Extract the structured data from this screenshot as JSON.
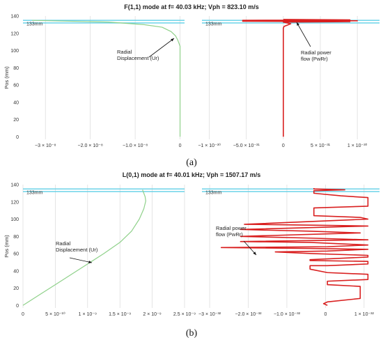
{
  "figure": {
    "caption_a": "(a)",
    "caption_b": "(b)"
  },
  "colors": {
    "displacement": "#8fd18a",
    "power": "#d91f1f",
    "bound": "#5fcfe6",
    "grid": "#d9d9d9"
  },
  "chart_data": [
    {
      "type": "line",
      "panel": "a-left",
      "title": "F(1,1) mode at f= 40.03 kHz; Vph = 823.10 m/s",
      "ylabel": "Pos (mm)",
      "xlabel": "",
      "yticks": [
        "0",
        "20",
        "40",
        "60",
        "80",
        "100",
        "120",
        "140"
      ],
      "ylim": [
        -3,
        140
      ],
      "xlim": [
        -3.5e-08,
        1e-09
      ],
      "xticks": [
        {
          "value": -3e-08,
          "label": "−3 × 10⁻⁸"
        },
        {
          "value": -2e-08,
          "label": "−2.0 × 10⁻⁸"
        },
        {
          "value": -1e-08,
          "label": "−1.0 × 10⁻⁸"
        },
        {
          "value": 0,
          "label": "0"
        }
      ],
      "grid": "vertical",
      "boundaries": [
        132,
        135
      ],
      "boundary_label": "133mm",
      "annotation": [
        "Radial",
        "Displacement (Ur)"
      ],
      "series": [
        {
          "name": "Radial Displacement (Ur)",
          "x": [
            -3.3e-08,
            -1.6e-08,
            -8e-09,
            -4e-09,
            -2e-09,
            -1e-09,
            -5e-10,
            0,
            0
          ],
          "y": [
            135,
            133,
            130,
            127,
            122,
            117,
            112,
            105,
            0
          ]
        }
      ]
    },
    {
      "type": "line",
      "panel": "a-right",
      "title": "",
      "ylim": [
        -3,
        140
      ],
      "xlim": [
        -1.1e-30,
        1.3e-30
      ],
      "xticks": [
        {
          "value": -1e-30,
          "label": "−1 × 10⁻³⁰"
        },
        {
          "value": -5e-31,
          "label": "−5.0 × 10⁻³¹"
        },
        {
          "value": 0,
          "label": "0"
        },
        {
          "value": 5e-31,
          "label": "5 × 10⁻³¹"
        },
        {
          "value": 1e-30,
          "label": "1 × 10⁻³⁰"
        }
      ],
      "grid": "vertical",
      "boundaries": [
        132,
        135
      ],
      "boundary_label": "133mm",
      "annotation": [
        "Radial power",
        "flow (PwRr)"
      ],
      "series": [
        {
          "name": "Radial power flow (PwRr)",
          "x": [
            0,
            0,
            0,
            0,
            1e-32,
            1e-31,
            0,
            9e-31,
            -5.5e-31,
            1e-30,
            -5.5e-31,
            9e-31,
            0,
            0
          ],
          "y": [
            0,
            118,
            122,
            126,
            128,
            131,
            133,
            133.5,
            134,
            134.5,
            135,
            135.5,
            136,
            136
          ]
        }
      ]
    },
    {
      "type": "line",
      "panel": "b-left",
      "title": "L(0,1) mode at f= 40.01 kHz; Vph = 1507.17 m/s",
      "ylabel": "Pos (mm)",
      "xlabel": "",
      "yticks": [
        "0",
        "20",
        "40",
        "60",
        "80",
        "100",
        "120",
        "140"
      ],
      "ylim": [
        -3,
        140
      ],
      "xlim": [
        0,
        2.5e-09
      ],
      "xticks": [
        {
          "value": 0,
          "label": "0"
        },
        {
          "value": 5e-10,
          "label": "5 × 10⁻¹⁰"
        },
        {
          "value": 1e-09,
          "label": "1 × 10⁻⁹"
        },
        {
          "value": 1.5e-09,
          "label": "1.5 × 10⁻⁹"
        },
        {
          "value": 2e-09,
          "label": "2 × 10⁻⁹"
        },
        {
          "value": 2.5e-09,
          "label": "2.5 × 10⁻⁹"
        }
      ],
      "grid": "vertical",
      "boundaries": [
        132,
        135
      ],
      "boundary_label": "133mm",
      "annotation": [
        "Radial",
        "Displacement (Ur)"
      ],
      "series": [
        {
          "name": "Radial Displacement (Ur)",
          "x": [
            0,
            2.5e-10,
            5e-10,
            7.5e-10,
            1e-09,
            1.25e-09,
            1.5e-09,
            1.68e-09,
            1.8e-09,
            1.87e-09,
            1.9e-09,
            1.89e-09,
            1.87e-09,
            1.85e-09
          ],
          "y": [
            0,
            12,
            24,
            36,
            48,
            60,
            73,
            86,
            100,
            112,
            121,
            126,
            130,
            134
          ]
        }
      ]
    },
    {
      "type": "line",
      "panel": "b-right",
      "title": "",
      "ylim": [
        -3,
        140
      ],
      "xlim": [
        -3.2e-32,
        1.4e-32
      ],
      "xticks": [
        {
          "value": -3e-32,
          "label": "−3 × 10⁻³²"
        },
        {
          "value": -2e-32,
          "label": "−2.0 × 10⁻³²"
        },
        {
          "value": -1e-32,
          "label": "−1.0 × 10⁻³²"
        },
        {
          "value": 0,
          "label": "0"
        },
        {
          "value": 1e-32,
          "label": "1 × 10⁻³²"
        }
      ],
      "grid": "vertical",
      "boundaries": [
        132,
        135
      ],
      "boundary_label": "133mm",
      "annotation": [
        "Radial power",
        "flow (PwRr)"
      ],
      "series": [
        {
          "name": "Radial power flow (PwRr)",
          "x": [
            5e-34,
            -5e-34,
            5e-34,
            9e-33,
            9e-33,
            5e-34,
            5e-34,
            1.1e-32,
            1.1e-32,
            5e-34,
            -4e-33,
            -4e-33,
            5e-34,
            1.1e-32,
            1.1e-32,
            -4e-33,
            -4e-33,
            1.1e-32,
            1.1e-32,
            -3e-33,
            -1.3e-32,
            5e-34,
            1.1e-32,
            -4e-33,
            -2.7e-32,
            5e-34,
            1.1e-32,
            -4e-33,
            -2.2e-32,
            1.1e-32,
            -4e-33,
            -2.2e-32,
            9e-33,
            -4e-33,
            -2.2e-32,
            1.1e-32,
            -3e-33,
            -2.1e-32,
            1.1e-32,
            9e-33,
            -3e-33,
            -3e-33,
            1.1e-32,
            1.1e-32,
            4e-33,
            -3e-33,
            -3e-33,
            5e-33,
            -3e-33,
            -3e-33
          ],
          "y": [
            0,
            2,
            4,
            8,
            22,
            24,
            28,
            30,
            36,
            38,
            42,
            46,
            46,
            48,
            51,
            52,
            53,
            56,
            58,
            60,
            62,
            63,
            65,
            66,
            67,
            68,
            70,
            73,
            74,
            76,
            78,
            80,
            84,
            86,
            88,
            92,
            93,
            94,
            100,
            102,
            104,
            113,
            115,
            125,
            127,
            130,
            133,
            134,
            135,
            136
          ]
        }
      ]
    }
  ]
}
